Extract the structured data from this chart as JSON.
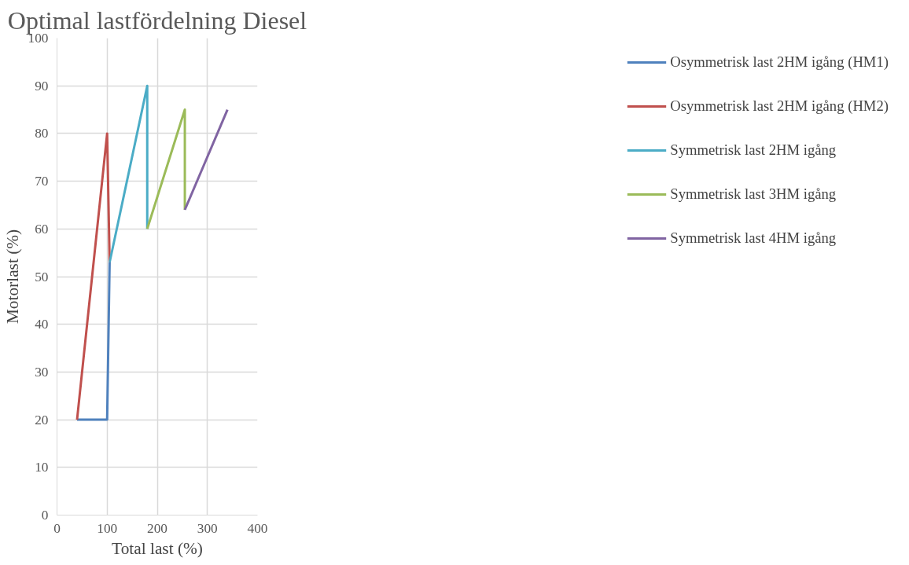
{
  "chart_data": {
    "type": "line",
    "title": "Optimal lastfördelning Diesel",
    "xlabel": "Total last (%)",
    "ylabel": "Motorlast (%)",
    "series": [
      {
        "name": "Osymmetrisk last 2HM igång (HM1)",
        "color": "#4f81bd",
        "x": [
          40,
          100,
          105
        ],
        "values": [
          20,
          20,
          53
        ]
      },
      {
        "name": "Osymmetrisk last 2HM igång (HM2)",
        "color": "#c0504d",
        "x": [
          40,
          100,
          105
        ],
        "values": [
          20,
          80,
          53
        ]
      },
      {
        "name": "Symmetrisk last 2HM igång",
        "color": "#4bacc6",
        "x": [
          105,
          180,
          180
        ],
        "values": [
          53,
          90,
          60
        ]
      },
      {
        "name": "Symmetrisk last 3HM igång",
        "color": "#9bbb59",
        "x": [
          180,
          255,
          255
        ],
        "values": [
          60,
          85,
          64
        ]
      },
      {
        "name": "Symmetrisk last 4HM igång",
        "color": "#8064a2",
        "x": [
          255,
          340
        ],
        "values": [
          64,
          85
        ]
      }
    ],
    "xlim": [
      0,
      400
    ],
    "xticks": [
      0,
      100,
      200,
      300,
      400
    ],
    "ylim": [
      0,
      100
    ],
    "yticks": [
      0,
      10,
      20,
      30,
      40,
      50,
      60,
      70,
      80,
      90,
      100
    ],
    "grid": true,
    "legend": "right",
    "marker": "none",
    "line_style": "solid"
  }
}
